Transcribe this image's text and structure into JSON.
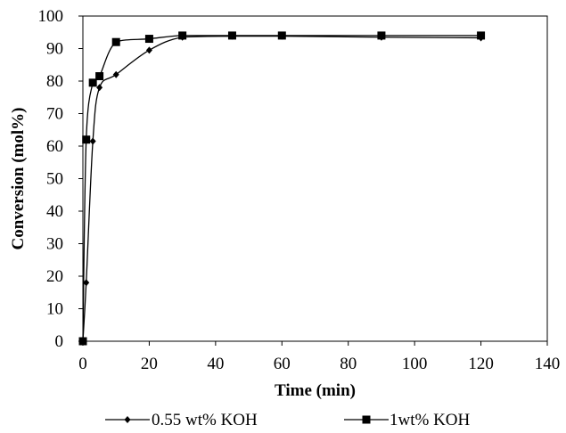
{
  "chart_data": {
    "type": "line",
    "title": "",
    "xlabel": "Time (min)",
    "ylabel": "Conversion (mol%)",
    "xlim": [
      0,
      140
    ],
    "ylim": [
      0,
      100
    ],
    "x_ticks": [
      "0",
      "20",
      "40",
      "60",
      "80",
      "100",
      "120",
      "140"
    ],
    "y_ticks": [
      "0",
      "10",
      "20",
      "30",
      "40",
      "50",
      "60",
      "70",
      "80",
      "90",
      "100"
    ],
    "grid": false,
    "legend_position": "bottom",
    "series": [
      {
        "name": "0.55 wt% KOH",
        "marker": "diamond",
        "color": "#000000",
        "x": [
          0,
          1,
          3,
          5,
          10,
          20,
          30,
          45,
          60,
          90,
          120
        ],
        "y": [
          0,
          18,
          61.5,
          78,
          82,
          89.5,
          93.5,
          93.8,
          93.8,
          93.5,
          93.3
        ]
      },
      {
        "name": "1wt% KOH",
        "marker": "square",
        "color": "#000000",
        "x": [
          0,
          1,
          3,
          5,
          10,
          20,
          30,
          45,
          60,
          90,
          120
        ],
        "y": [
          0,
          62,
          79.5,
          81.5,
          92,
          93,
          94,
          94,
          94,
          94,
          94
        ]
      }
    ]
  }
}
